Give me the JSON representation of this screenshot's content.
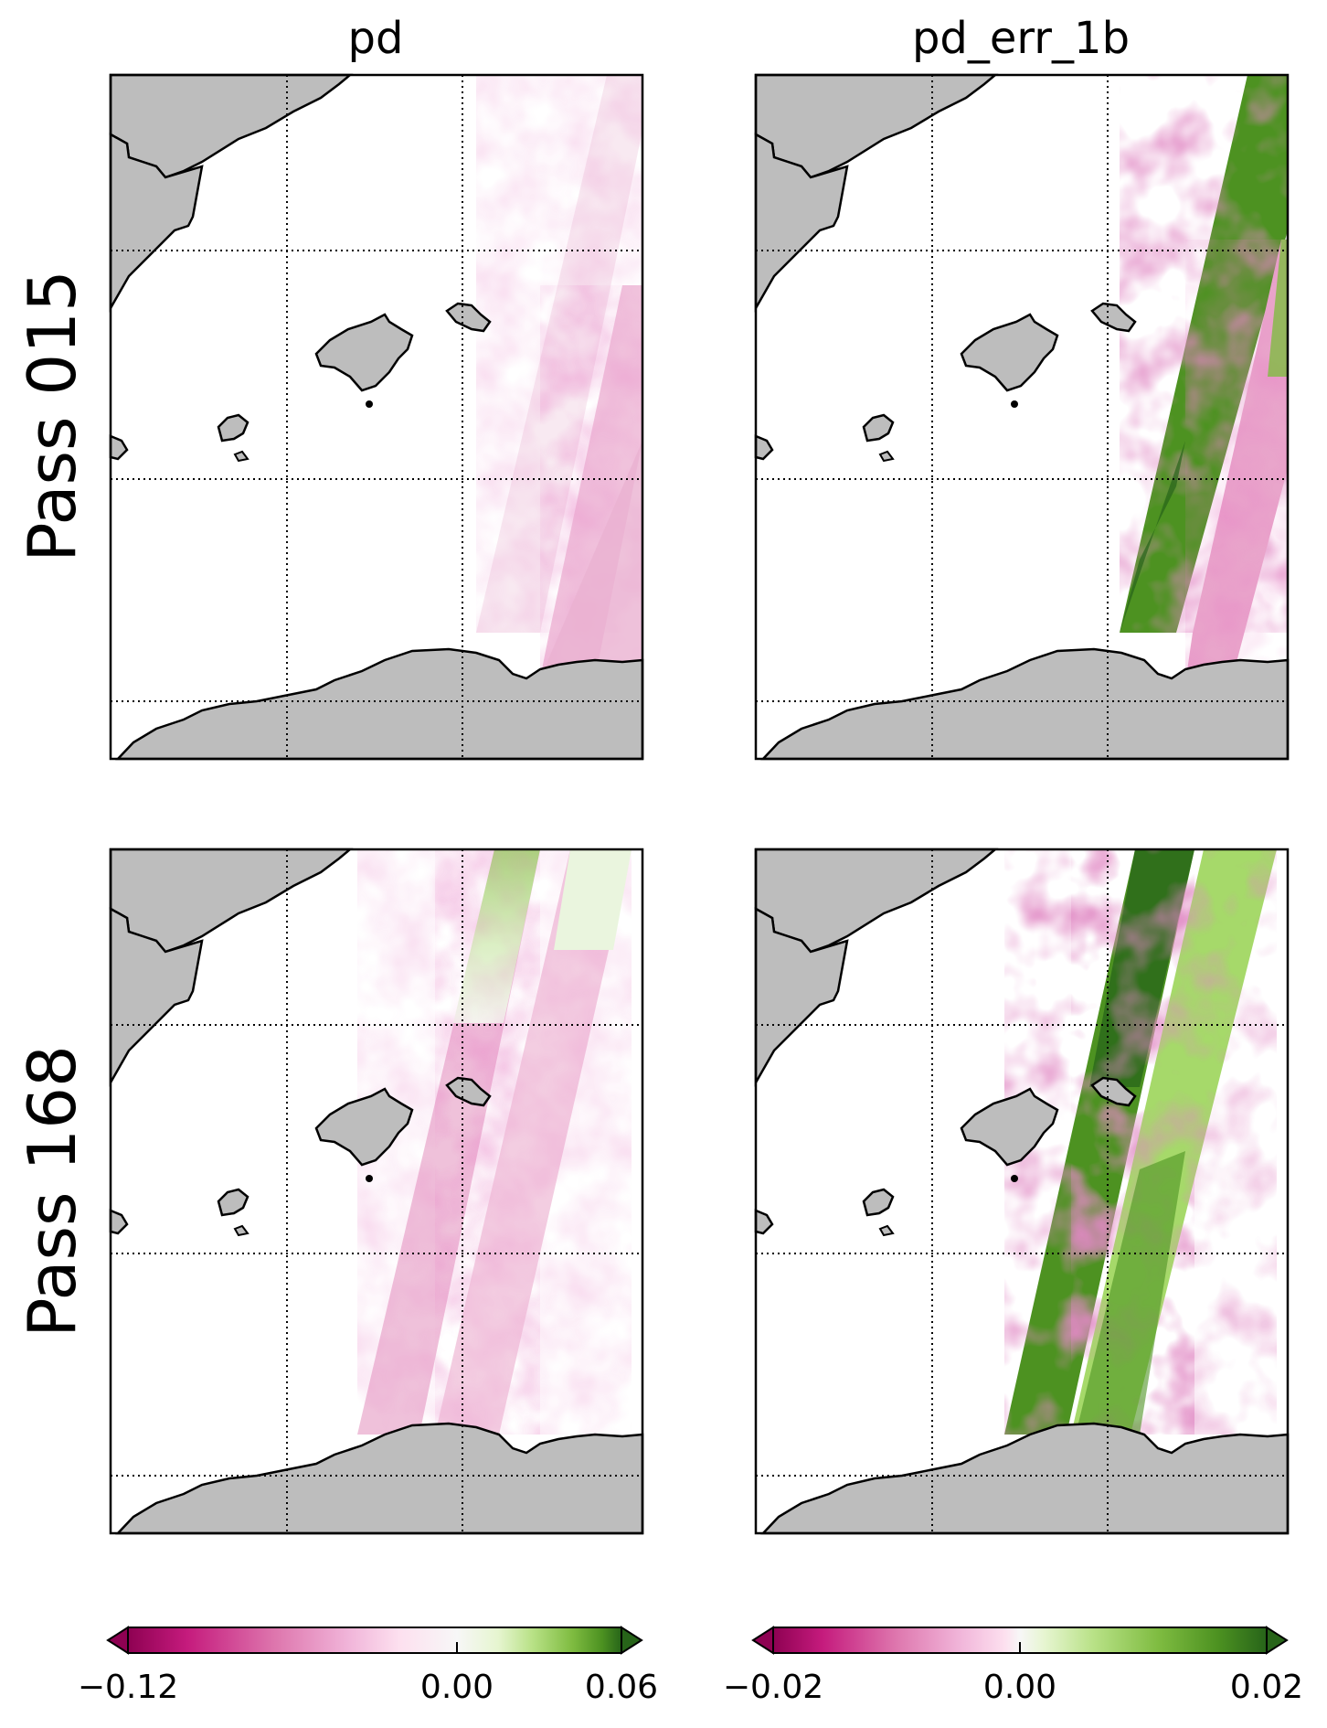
{
  "figure": {
    "columns": [
      {
        "title": "pd",
        "colorbar": {
          "ticks": [
            "−0.12",
            "0.00",
            "0.06"
          ],
          "tick_values": [
            -0.12,
            0.0,
            0.06
          ],
          "min": -0.12,
          "max": 0.06
        }
      },
      {
        "title": "pd_err_1b",
        "colorbar": {
          "ticks": [
            "−0.02",
            "0.00",
            "0.02"
          ],
          "tick_values": [
            -0.02,
            0.0,
            0.02
          ],
          "min": -0.02,
          "max": 0.02
        }
      }
    ],
    "rows": [
      {
        "label": "Pass 015"
      },
      {
        "label": "Pass 168"
      }
    ],
    "colormap": {
      "name": "PiYG",
      "negative": "#8e0152",
      "zero": "#f7f7f7",
      "positive": "#276419"
    },
    "land_color": "#bdbdbd",
    "grid": "dotted"
  }
}
